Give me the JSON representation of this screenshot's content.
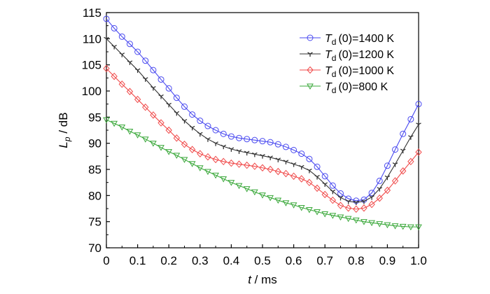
{
  "chart_data": {
    "type": "line",
    "title": "",
    "xlabel_var": "t",
    "xlabel_unit": " / ms",
    "ylabel_var": "L",
    "ylabel_sub": "p",
    "ylabel_unit": " / dB",
    "xlim": [
      0,
      1.0
    ],
    "ylim": [
      70,
      115
    ],
    "xticks": [
      "0",
      "0.1",
      "0.2",
      "0.3",
      "0.4",
      "0.5",
      "0.6",
      "0.7",
      "0.8",
      "0.9",
      "1.0"
    ],
    "yticks": [
      "70",
      "75",
      "80",
      "85",
      "90",
      "95",
      "100",
      "105",
      "110",
      "115"
    ],
    "grid": false,
    "legend_position": "top-right",
    "x": [
      0,
      0.025,
      0.05,
      0.075,
      0.1,
      0.125,
      0.15,
      0.175,
      0.2,
      0.225,
      0.25,
      0.275,
      0.3,
      0.325,
      0.35,
      0.375,
      0.4,
      0.425,
      0.45,
      0.475,
      0.5,
      0.525,
      0.55,
      0.575,
      0.6,
      0.625,
      0.65,
      0.675,
      0.7,
      0.725,
      0.75,
      0.775,
      0.8,
      0.825,
      0.85,
      0.875,
      0.9,
      0.925,
      0.95,
      0.975,
      1.0
    ],
    "series": [
      {
        "name": "T",
        "name_sub": "d",
        "name_rest": "(0)=1400 K",
        "color": "#4a4af0",
        "marker": "circle",
        "values": [
          113.8,
          112.0,
          110.4,
          109.0,
          107.5,
          105.8,
          104.0,
          102.2,
          100.5,
          98.7,
          97.0,
          95.5,
          94.3,
          93.3,
          92.5,
          91.8,
          91.3,
          91.0,
          90.8,
          90.6,
          90.4,
          90.2,
          89.8,
          89.3,
          88.7,
          88.0,
          87.0,
          85.5,
          83.7,
          81.9,
          80.4,
          79.4,
          79.0,
          79.2,
          80.5,
          82.8,
          85.7,
          88.8,
          91.8,
          94.6,
          97.5
        ]
      },
      {
        "name": "T",
        "name_sub": "d",
        "name_rest": "(0)=1200 K",
        "color": "#333333",
        "marker": "star",
        "values": [
          110.0,
          108.5,
          107.0,
          105.5,
          104.0,
          102.3,
          100.6,
          99.0,
          97.4,
          95.8,
          94.3,
          93.0,
          91.8,
          90.8,
          90.0,
          89.4,
          88.9,
          88.5,
          88.2,
          87.9,
          87.6,
          87.3,
          86.9,
          86.5,
          86.0,
          85.5,
          84.8,
          83.6,
          82.2,
          80.8,
          79.6,
          78.9,
          78.7,
          78.9,
          79.7,
          81.3,
          83.5,
          86.0,
          88.6,
          91.2,
          93.6
        ]
      },
      {
        "name": "T",
        "name_sub": "d",
        "name_rest": "(0)=1000 K",
        "color": "#f04a4a",
        "marker": "diamond",
        "values": [
          104.3,
          102.8,
          101.3,
          99.9,
          98.4,
          96.9,
          95.4,
          93.9,
          92.5,
          91.0,
          89.8,
          88.8,
          88.0,
          87.4,
          86.9,
          86.5,
          86.2,
          86.0,
          85.8,
          85.6,
          85.3,
          85.0,
          84.6,
          84.2,
          83.7,
          83.2,
          82.5,
          81.4,
          80.2,
          79.1,
          78.1,
          77.6,
          77.4,
          77.6,
          78.3,
          79.5,
          81.0,
          82.8,
          84.7,
          86.5,
          88.3
        ]
      },
      {
        "name": "T",
        "name_sub": "d",
        "name_rest": "(0)=800 K",
        "color": "#3aa83a",
        "marker": "triangle-down",
        "values": [
          94.5,
          93.8,
          93.1,
          92.3,
          91.6,
          90.8,
          90.0,
          89.2,
          88.4,
          87.7,
          86.9,
          86.1,
          85.3,
          84.6,
          83.9,
          83.2,
          82.5,
          81.9,
          81.3,
          80.7,
          80.1,
          79.6,
          79.1,
          78.6,
          78.2,
          77.7,
          77.3,
          76.9,
          76.5,
          76.2,
          75.9,
          75.6,
          75.3,
          75.0,
          74.8,
          74.6,
          74.4,
          74.2,
          74.1,
          74.0,
          74.0
        ]
      }
    ]
  }
}
